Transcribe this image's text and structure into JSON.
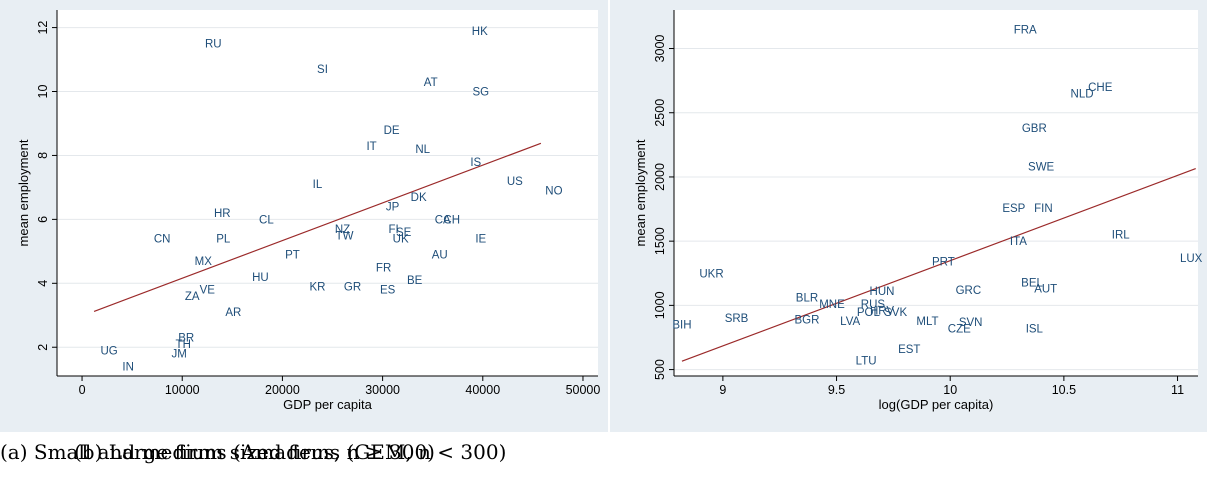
{
  "chart_data": [
    {
      "type": "scatter",
      "xlabel": "GDP per capita",
      "ylabel": "mean employment",
      "xlim": [
        -2500,
        51500
      ],
      "ylim": [
        1.1,
        12.55
      ],
      "xticks": [
        0,
        10000,
        20000,
        30000,
        40000,
        50000
      ],
      "xtick_labels": [
        "0",
        "10000",
        "20000",
        "30000",
        "40000",
        "50000"
      ],
      "yticks": [
        2,
        4,
        6,
        8,
        10,
        12
      ],
      "ytick_labels": [
        "2",
        "4",
        "6",
        "8",
        "10",
        "12"
      ],
      "grid": true,
      "points": [
        {
          "label": "HK",
          "x": 39700,
          "y": 11.9
        },
        {
          "label": "RU",
          "x": 13100,
          "y": 11.5
        },
        {
          "label": "SI",
          "x": 24000,
          "y": 10.7
        },
        {
          "label": "AT",
          "x": 34800,
          "y": 10.3
        },
        {
          "label": "SG",
          "x": 39800,
          "y": 10.0
        },
        {
          "label": "DE",
          "x": 30900,
          "y": 8.8
        },
        {
          "label": "IT",
          "x": 28900,
          "y": 8.3
        },
        {
          "label": "NL",
          "x": 34000,
          "y": 8.2
        },
        {
          "label": "IS",
          "x": 39300,
          "y": 7.8
        },
        {
          "label": "US",
          "x": 43200,
          "y": 7.2
        },
        {
          "label": "NO",
          "x": 47100,
          "y": 6.9
        },
        {
          "label": "IL",
          "x": 23500,
          "y": 7.1
        },
        {
          "label": "DK",
          "x": 33600,
          "y": 6.7
        },
        {
          "label": "JP",
          "x": 31000,
          "y": 6.4
        },
        {
          "label": "HR",
          "x": 14000,
          "y": 6.2
        },
        {
          "label": "CL",
          "x": 18400,
          "y": 6.0
        },
        {
          "label": "CA",
          "x": 36000,
          "y": 6.0
        },
        {
          "label": "CH",
          "x": 36900,
          "y": 6.0
        },
        {
          "label": "NZ",
          "x": 26000,
          "y": 5.7
        },
        {
          "label": "FI",
          "x": 31100,
          "y": 5.7
        },
        {
          "label": "SE",
          "x": 32100,
          "y": 5.6
        },
        {
          "label": "TW",
          "x": 26200,
          "y": 5.5
        },
        {
          "label": "UK",
          "x": 31800,
          "y": 5.4
        },
        {
          "label": "CN",
          "x": 8000,
          "y": 5.4
        },
        {
          "label": "PL",
          "x": 14100,
          "y": 5.4
        },
        {
          "label": "IE",
          "x": 39800,
          "y": 5.4
        },
        {
          "label": "PT",
          "x": 21000,
          "y": 4.9
        },
        {
          "label": "AU",
          "x": 35700,
          "y": 4.9
        },
        {
          "label": "MX",
          "x": 12100,
          "y": 4.7
        },
        {
          "label": "FR",
          "x": 30100,
          "y": 4.5
        },
        {
          "label": "HU",
          "x": 17800,
          "y": 4.2
        },
        {
          "label": "BE",
          "x": 33200,
          "y": 4.1
        },
        {
          "label": "KR",
          "x": 23500,
          "y": 3.9
        },
        {
          "label": "GR",
          "x": 27000,
          "y": 3.9
        },
        {
          "label": "ES",
          "x": 30500,
          "y": 3.8
        },
        {
          "label": "VE",
          "x": 12500,
          "y": 3.8
        },
        {
          "label": "ZA",
          "x": 11000,
          "y": 3.6
        },
        {
          "label": "AR",
          "x": 15100,
          "y": 3.1
        },
        {
          "label": "BR",
          "x": 10400,
          "y": 2.3
        },
        {
          "label": "TH",
          "x": 10100,
          "y": 2.1
        },
        {
          "label": "UG",
          "x": 2700,
          "y": 1.9
        },
        {
          "label": "JM",
          "x": 9700,
          "y": 1.8
        },
        {
          "label": "IN",
          "x": 4600,
          "y": 1.4
        }
      ],
      "fit_line": {
        "x": [
          1200,
          45800
        ],
        "y": [
          3.12,
          8.38
        ]
      }
    },
    {
      "type": "scatter",
      "xlabel": "log(GDP per capita)",
      "ylabel": "mean employment",
      "xlim": [
        8.785,
        11.09
      ],
      "ylim": [
        450,
        3300
      ],
      "xticks": [
        9,
        9.5,
        10,
        10.5,
        11
      ],
      "xtick_labels": [
        "9",
        "9.5",
        "10",
        "10.5",
        "11"
      ],
      "yticks": [
        500,
        1000,
        1500,
        2000,
        2500,
        3000
      ],
      "ytick_labels": [
        "500",
        "1000",
        "1500",
        "2000",
        "2500",
        "3000"
      ],
      "grid": true,
      "points": [
        {
          "label": "FRA",
          "x": 10.33,
          "y": 3150
        },
        {
          "label": "CHE",
          "x": 10.66,
          "y": 2700
        },
        {
          "label": "NLD",
          "x": 10.58,
          "y": 2650
        },
        {
          "label": "GBR",
          "x": 10.37,
          "y": 2380
        },
        {
          "label": "SWE",
          "x": 10.4,
          "y": 2080
        },
        {
          "label": "ESP",
          "x": 10.28,
          "y": 1760
        },
        {
          "label": "FIN",
          "x": 10.41,
          "y": 1760
        },
        {
          "label": "IRL",
          "x": 10.75,
          "y": 1550
        },
        {
          "label": "ITA",
          "x": 10.3,
          "y": 1500
        },
        {
          "label": "LUX",
          "x": 11.06,
          "y": 1370
        },
        {
          "label": "PRT",
          "x": 9.97,
          "y": 1340
        },
        {
          "label": "UKR",
          "x": 8.95,
          "y": 1250
        },
        {
          "label": "BEL",
          "x": 10.36,
          "y": 1180
        },
        {
          "label": "AUT",
          "x": 10.42,
          "y": 1130
        },
        {
          "label": "GRC",
          "x": 10.08,
          "y": 1120
        },
        {
          "label": "HUN",
          "x": 9.7,
          "y": 1110
        },
        {
          "label": "BLR",
          "x": 9.37,
          "y": 1060
        },
        {
          "label": "MNE",
          "x": 9.48,
          "y": 1010
        },
        {
          "label": "RUS",
          "x": 9.66,
          "y": 1010
        },
        {
          "label": "POL",
          "x": 9.64,
          "y": 950
        },
        {
          "label": "HRV",
          "x": 9.7,
          "y": 960
        },
        {
          "label": "SVK",
          "x": 9.76,
          "y": 950
        },
        {
          "label": "SRB",
          "x": 9.06,
          "y": 900
        },
        {
          "label": "BGR",
          "x": 9.37,
          "y": 890
        },
        {
          "label": "LVA",
          "x": 9.56,
          "y": 880
        },
        {
          "label": "MLT",
          "x": 9.9,
          "y": 880
        },
        {
          "label": "SVN",
          "x": 10.09,
          "y": 870
        },
        {
          "label": "BIH",
          "x": 8.82,
          "y": 850
        },
        {
          "label": "CZE",
          "x": 10.04,
          "y": 820
        },
        {
          "label": "ISL",
          "x": 10.37,
          "y": 820
        },
        {
          "label": "EST",
          "x": 9.82,
          "y": 660
        },
        {
          "label": "LTU",
          "x": 9.63,
          "y": 570
        }
      ],
      "fit_line": {
        "x": [
          8.82,
          11.08
        ],
        "y": [
          565,
          2065
        ]
      }
    }
  ],
  "captions": {
    "a": "(a) Small and medium sized firms (GEM, n < 300)",
    "b": "(b) Large firms (Amadeus, n ≥ 300)"
  },
  "colors": {
    "panel_bg": "#e8eef3",
    "plot_bg": "#ffffff",
    "grid": "#e4e8ec",
    "marker_label": "#1f4e79",
    "fit_line": "#9b2a2a"
  }
}
